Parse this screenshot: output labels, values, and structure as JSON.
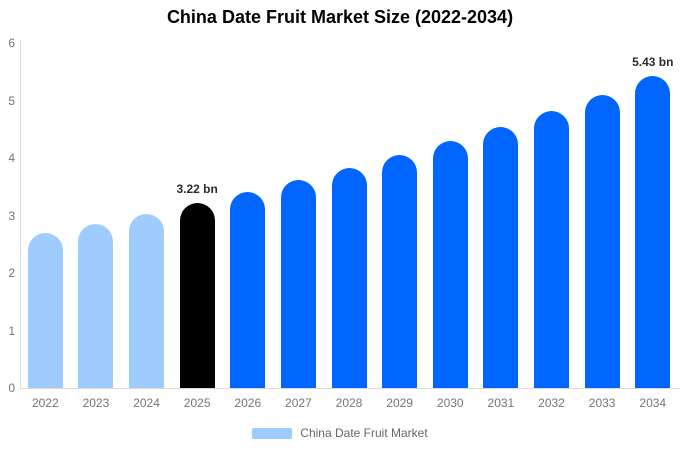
{
  "colors": {
    "light_blue": "#9FCCFF",
    "blue": "#0066FF",
    "black": "#000000",
    "axis_line": "#D9D9D9",
    "tick_text": "#757575",
    "value_label_text": "#2B2B2B",
    "title_text": "#000000",
    "legend_text": "#666666",
    "background": "#FFFFFF"
  },
  "chart_data": {
    "type": "bar",
    "title": "China Date Fruit Market Size (2022-2034)",
    "categories": [
      "2022",
      "2023",
      "2024",
      "2025",
      "2026",
      "2027",
      "2028",
      "2029",
      "2030",
      "2031",
      "2032",
      "2033",
      "2034"
    ],
    "values": [
      2.7,
      2.86,
      3.03,
      3.22,
      3.41,
      3.61,
      3.82,
      4.05,
      4.29,
      4.54,
      4.81,
      5.1,
      5.43
    ],
    "bar_colors": [
      "light_blue",
      "light_blue",
      "light_blue",
      "black",
      "blue",
      "blue",
      "blue",
      "blue",
      "blue",
      "blue",
      "blue",
      "blue",
      "blue"
    ],
    "data_labels": [
      {
        "category": "2025",
        "text": "3.22 bn"
      },
      {
        "category": "2034",
        "text": "5.43 bn"
      }
    ],
    "xlabel": "",
    "ylabel": "",
    "ylim": [
      0,
      6
    ],
    "yticks": [
      "0",
      "1",
      "2",
      "3",
      "4",
      "5",
      "6"
    ],
    "grid": false,
    "legend": {
      "position": "bottom",
      "label": "China Date Fruit Market"
    }
  }
}
